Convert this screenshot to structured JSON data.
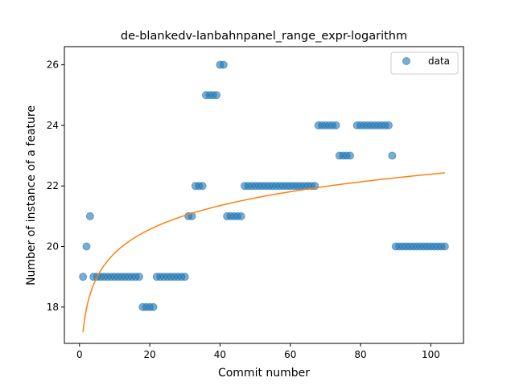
{
  "chart_data": {
    "type": "scatter",
    "title": "de-blankedv-lanbahnpanel_range_expr-logarithm",
    "xlabel": "Commit number",
    "ylabel": "Number of instance of a feature",
    "xlim": [
      -4.3,
      109.3
    ],
    "ylim": [
      16.8,
      26.6
    ],
    "xticks": [
      0,
      20,
      40,
      60,
      80,
      100
    ],
    "yticks": [
      18,
      20,
      22,
      24,
      26
    ],
    "legend": {
      "position": "top-right",
      "entries": [
        "data"
      ]
    },
    "colors": {
      "data": "#1f77b4",
      "fit": "#ff7f0e"
    },
    "series": [
      {
        "name": "data",
        "kind": "scatter",
        "points": [
          [
            1,
            19
          ],
          [
            2,
            20
          ],
          [
            3,
            21
          ],
          [
            4,
            19
          ],
          [
            5,
            19
          ],
          [
            6,
            19
          ],
          [
            7,
            19
          ],
          [
            8,
            19
          ],
          [
            9,
            19
          ],
          [
            10,
            19
          ],
          [
            11,
            19
          ],
          [
            12,
            19
          ],
          [
            13,
            19
          ],
          [
            14,
            19
          ],
          [
            15,
            19
          ],
          [
            16,
            19
          ],
          [
            17,
            19
          ],
          [
            18,
            18
          ],
          [
            19,
            18
          ],
          [
            20,
            18
          ],
          [
            21,
            18
          ],
          [
            22,
            19
          ],
          [
            23,
            19
          ],
          [
            24,
            19
          ],
          [
            25,
            19
          ],
          [
            26,
            19
          ],
          [
            27,
            19
          ],
          [
            28,
            19
          ],
          [
            29,
            19
          ],
          [
            30,
            19
          ],
          [
            31,
            21
          ],
          [
            32,
            21
          ],
          [
            33,
            22
          ],
          [
            34,
            22
          ],
          [
            35,
            22
          ],
          [
            36,
            25
          ],
          [
            37,
            25
          ],
          [
            38,
            25
          ],
          [
            39,
            25
          ],
          [
            40,
            26
          ],
          [
            41,
            26
          ],
          [
            42,
            21
          ],
          [
            43,
            21
          ],
          [
            44,
            21
          ],
          [
            45,
            21
          ],
          [
            46,
            21
          ],
          [
            47,
            22
          ],
          [
            48,
            22
          ],
          [
            49,
            22
          ],
          [
            50,
            22
          ],
          [
            51,
            22
          ],
          [
            52,
            22
          ],
          [
            53,
            22
          ],
          [
            54,
            22
          ],
          [
            55,
            22
          ],
          [
            56,
            22
          ],
          [
            57,
            22
          ],
          [
            58,
            22
          ],
          [
            59,
            22
          ],
          [
            60,
            22
          ],
          [
            61,
            22
          ],
          [
            62,
            22
          ],
          [
            63,
            22
          ],
          [
            64,
            22
          ],
          [
            65,
            22
          ],
          [
            66,
            22
          ],
          [
            67,
            22
          ],
          [
            68,
            24
          ],
          [
            69,
            24
          ],
          [
            70,
            24
          ],
          [
            71,
            24
          ],
          [
            72,
            24
          ],
          [
            73,
            24
          ],
          [
            74,
            23
          ],
          [
            75,
            23
          ],
          [
            76,
            23
          ],
          [
            77,
            23
          ],
          [
            79,
            24
          ],
          [
            80,
            24
          ],
          [
            81,
            24
          ],
          [
            82,
            24
          ],
          [
            83,
            24
          ],
          [
            84,
            24
          ],
          [
            85,
            24
          ],
          [
            86,
            24
          ],
          [
            87,
            24
          ],
          [
            88,
            24
          ],
          [
            89,
            23
          ],
          [
            90,
            20
          ],
          [
            91,
            20
          ],
          [
            92,
            20
          ],
          [
            93,
            20
          ],
          [
            94,
            20
          ],
          [
            95,
            20
          ],
          [
            96,
            20
          ],
          [
            97,
            20
          ],
          [
            98,
            20
          ],
          [
            99,
            20
          ],
          [
            100,
            20
          ],
          [
            101,
            20
          ],
          [
            102,
            20
          ],
          [
            103,
            20
          ],
          [
            104,
            20
          ]
        ]
      },
      {
        "kind": "line",
        "model": "logarithmic",
        "a": 17.17,
        "b": 1.133,
        "x_range": [
          1,
          104
        ]
      }
    ]
  }
}
